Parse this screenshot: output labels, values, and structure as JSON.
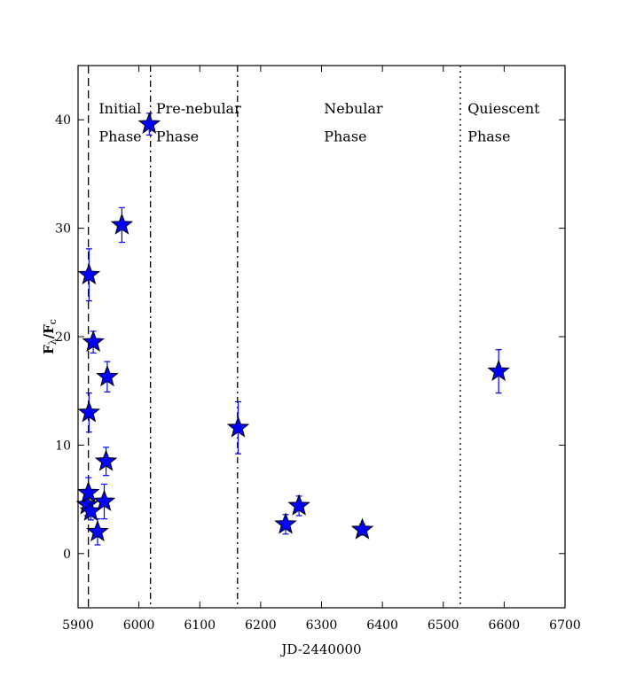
{
  "chart_data": {
    "type": "scatter",
    "xlabel": "JD-2440000",
    "ylabel": {
      "main_prefix": "F",
      "sub_prefix": "λ",
      "divider": "/",
      "main_suffix": "F",
      "sub_suffix": "c"
    },
    "xlim": [
      5900,
      6700
    ],
    "ylim": [
      -5,
      45
    ],
    "xticks": [
      5900,
      6000,
      6100,
      6200,
      6300,
      6400,
      6500,
      6600,
      6700
    ],
    "yticks": [
      0,
      10,
      20,
      30,
      40
    ],
    "grid": false,
    "marker": "star",
    "marker_color": "#0000ff",
    "errorbar_color": "#0000ff",
    "series": [
      {
        "points": [
          {
            "x": 5915,
            "y": 4.5,
            "err": 1.0
          },
          {
            "x": 5917,
            "y": 5.6,
            "err": 1.4
          },
          {
            "x": 5918,
            "y": 13.0,
            "err": 1.8
          },
          {
            "x": 5918,
            "y": 25.7,
            "err": 2.4
          },
          {
            "x": 5921,
            "y": 3.9,
            "err": 0.8
          },
          {
            "x": 5925,
            "y": 19.5,
            "err": 1.0
          },
          {
            "x": 5932,
            "y": 2.0,
            "err": 1.2
          },
          {
            "x": 5943,
            "y": 4.8,
            "err": 1.6
          },
          {
            "x": 5946,
            "y": 8.5,
            "err": 1.3
          },
          {
            "x": 5948,
            "y": 16.3,
            "err": 1.4
          },
          {
            "x": 5972,
            "y": 30.3,
            "err": 1.6
          },
          {
            "x": 6017,
            "y": 39.6,
            "err": 1.0
          },
          {
            "x": 6163,
            "y": 11.6,
            "err": 2.4
          },
          {
            "x": 6241,
            "y": 2.7,
            "err": 0.9
          },
          {
            "x": 6263,
            "y": 4.4,
            "err": 0.9
          },
          {
            "x": 6367,
            "y": 2.2,
            "err": 0.5
          },
          {
            "x": 6591,
            "y": 16.8,
            "err": 2.0
          }
        ]
      }
    ],
    "phase_lines": [
      {
        "x": 5917,
        "style": "dashed"
      },
      {
        "x": 6019,
        "style": "dashdot"
      },
      {
        "x": 6162,
        "style": "dashdot"
      },
      {
        "x": 6528,
        "style": "dotted"
      }
    ],
    "annotations": [
      {
        "x": 5934,
        "y": 40.6,
        "text": "Initial"
      },
      {
        "x": 5934,
        "y": 38.0,
        "text": "Phase"
      },
      {
        "x": 6028,
        "y": 40.6,
        "text": "Pre-nebular"
      },
      {
        "x": 6028,
        "y": 38.0,
        "text": "Phase"
      },
      {
        "x": 6304,
        "y": 40.6,
        "text": "Nebular"
      },
      {
        "x": 6304,
        "y": 38.0,
        "text": "Phase"
      },
      {
        "x": 6540,
        "y": 40.6,
        "text": "Quiescent"
      },
      {
        "x": 6540,
        "y": 38.0,
        "text": "Phase"
      }
    ]
  }
}
